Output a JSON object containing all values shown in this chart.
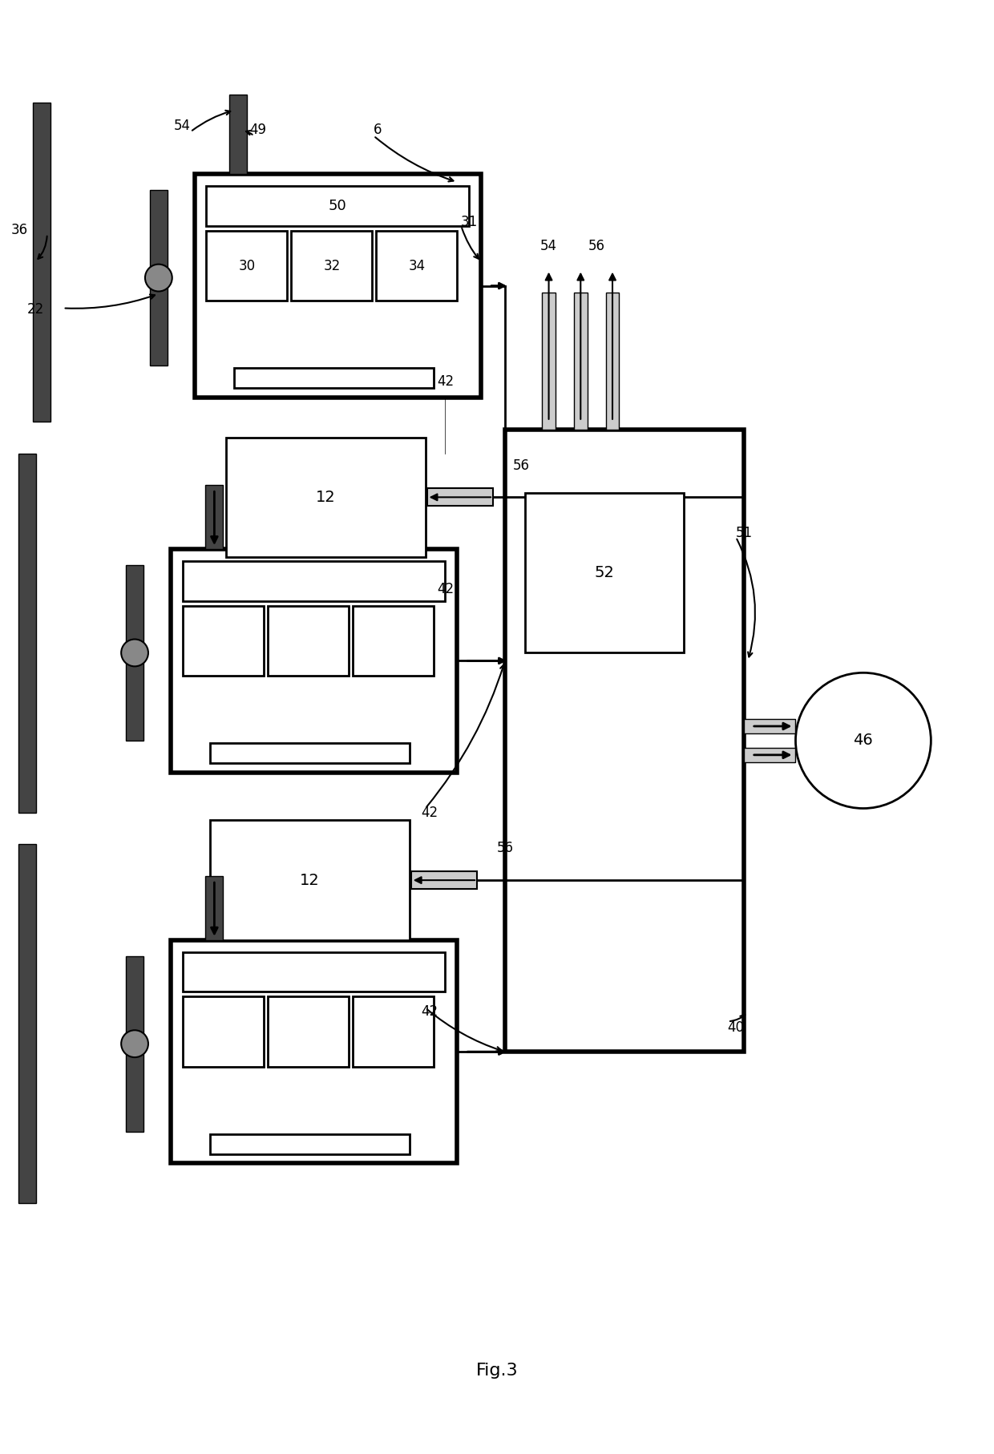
{
  "title": "Fig.3",
  "bg_color": "#ffffff",
  "fig_width": 12.4,
  "fig_height": 18.14,
  "lw_border": 4.0,
  "lw_med": 2.0,
  "lw_thin": 1.5,
  "dark_fill": "#444444",
  "light_fill": "#cccccc",
  "hub_fill": "#888888"
}
